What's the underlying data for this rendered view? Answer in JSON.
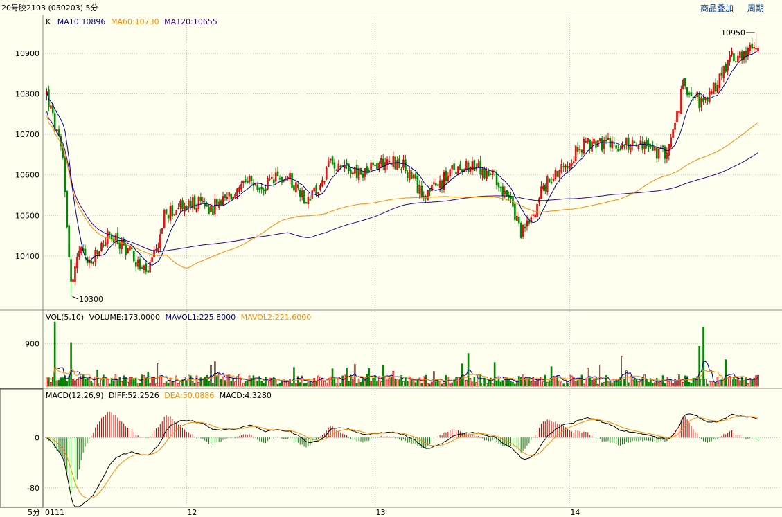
{
  "header": {
    "title": "20号胶2103 (050203) 5分",
    "link_overlay": "商品叠加",
    "link_period": "周期"
  },
  "colors": {
    "background": "#fffff0",
    "up": "#d40000",
    "down": "#008800",
    "ma10": "#000088",
    "ma60": "#ff8800",
    "ma120": "#330088",
    "grid": "#bbbbbb"
  },
  "chart_data": {
    "type": "candlestick",
    "timeframe": "5分",
    "x_ticks": [
      "0111",
      "12",
      "13",
      "14"
    ],
    "price_panel": {
      "legend": {
        "prefix": "K",
        "ma10": "MA10:10896",
        "ma60": "MA60:10730",
        "ma120": "MA120:10655"
      },
      "y_ticks": [
        10400,
        10500,
        10600,
        10700,
        10800,
        10900
      ],
      "ylim": [
        10270,
        10970
      ],
      "annotations": {
        "high_label": "10950",
        "high_value": 10950,
        "low_label": "10300",
        "low_value": 10300
      }
    },
    "volume_panel": {
      "legend": {
        "label": "VOL(5,10)",
        "volume": "VOLUME:173.0000",
        "mavol1": "MAVOL1:225.8000",
        "mavol2": "MAVOL2:221.6000"
      },
      "y_ticks": [
        900
      ],
      "ylim": [
        0,
        1400
      ]
    },
    "macd_panel": {
      "legend": {
        "label": "MACD(12,26,9)",
        "diff": "DIFF:52.2526",
        "dea": "DEA:50.0886",
        "macd": "MACD:4.3280"
      },
      "y_ticks": [
        0,
        -80
      ],
      "ylim": [
        -110,
        60
      ]
    },
    "anchors": [
      [
        0,
        10800
      ],
      [
        8,
        10640
      ],
      [
        12,
        10330
      ],
      [
        16,
        10410
      ],
      [
        22,
        10380
      ],
      [
        30,
        10450
      ],
      [
        36,
        10430
      ],
      [
        42,
        10410
      ],
      [
        46,
        10370
      ],
      [
        50,
        10360
      ],
      [
        54,
        10410
      ],
      [
        58,
        10500
      ],
      [
        66,
        10520
      ],
      [
        74,
        10530
      ],
      [
        82,
        10520
      ],
      [
        92,
        10550
      ],
      [
        100,
        10580
      ],
      [
        106,
        10560
      ],
      [
        112,
        10590
      ],
      [
        120,
        10590
      ],
      [
        128,
        10540
      ],
      [
        134,
        10560
      ],
      [
        140,
        10630
      ],
      [
        146,
        10630
      ],
      [
        154,
        10600
      ],
      [
        162,
        10620
      ],
      [
        168,
        10640
      ],
      [
        176,
        10620
      ],
      [
        184,
        10560
      ],
      [
        190,
        10560
      ],
      [
        198,
        10600
      ],
      [
        206,
        10630
      ],
      [
        214,
        10610
      ],
      [
        222,
        10590
      ],
      [
        228,
        10540
      ],
      [
        234,
        10460
      ],
      [
        238,
        10480
      ],
      [
        244,
        10560
      ],
      [
        252,
        10610
      ],
      [
        258,
        10640
      ],
      [
        264,
        10670
      ],
      [
        272,
        10680
      ],
      [
        280,
        10670
      ],
      [
        288,
        10680
      ],
      [
        296,
        10670
      ],
      [
        302,
        10650
      ],
      [
        306,
        10660
      ],
      [
        310,
        10720
      ],
      [
        314,
        10820
      ],
      [
        318,
        10810
      ],
      [
        324,
        10770
      ],
      [
        330,
        10820
      ],
      [
        336,
        10880
      ],
      [
        342,
        10900
      ],
      [
        348,
        10905
      ],
      [
        351,
        10930
      ]
    ],
    "candle_count": 352,
    "volume_spikes": [
      [
        4,
        1350
      ],
      [
        12,
        920
      ],
      [
        50,
        300
      ],
      [
        208,
        690
      ],
      [
        284,
        630
      ],
      [
        322,
        840
      ],
      [
        324,
        1250
      ]
    ],
    "ma_levels": {
      "ma60_end": 10730,
      "ma120_end": 10655
    }
  }
}
